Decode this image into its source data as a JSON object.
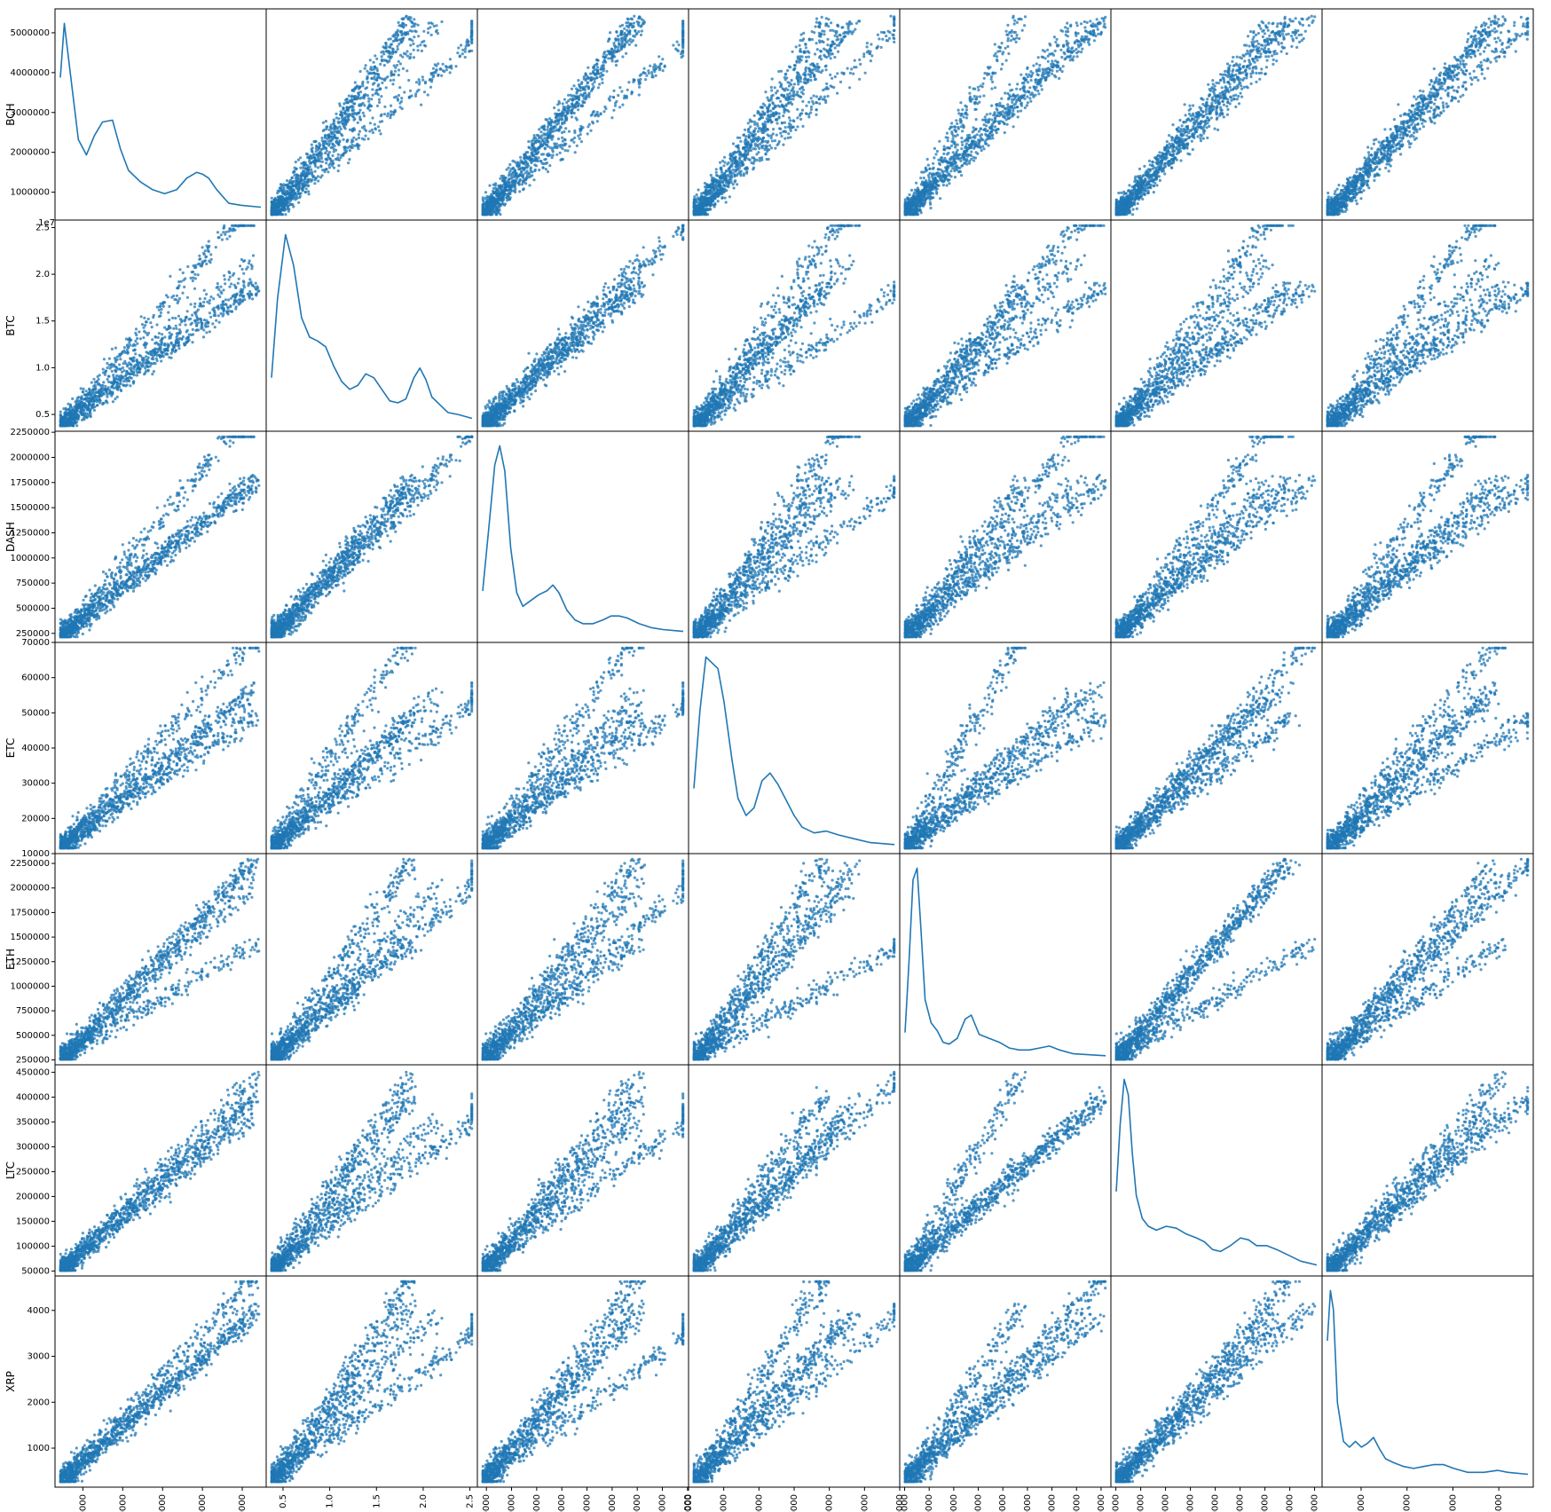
{
  "chart_data": {
    "type": "scatter",
    "subtype": "scatter-matrix",
    "diagonal": "kde",
    "point_color": "#1f77b4",
    "variables": [
      {
        "name": "BCH",
        "ticks": [
          "1000000",
          "2000000",
          "3000000",
          "4000000",
          "5000000"
        ],
        "tick_values": [
          1000000,
          2000000,
          3000000,
          4000000,
          5000000
        ],
        "lim": [
          300000,
          5600000
        ],
        "offset": ""
      },
      {
        "name": "BTC",
        "ticks": [
          "0.5",
          "1.0",
          "1.5",
          "2.0",
          "2.5"
        ],
        "tick_values": [
          0.5,
          1.0,
          1.5,
          2.0,
          2.5
        ],
        "lim": [
          0.32,
          2.58
        ],
        "offset": "1e7"
      },
      {
        "name": "DASH",
        "ticks": [
          "250000",
          "500000",
          "750000",
          "1000000",
          "1250000",
          "1500000",
          "1750000",
          "2000000",
          "2250000"
        ],
        "tick_values": [
          250000,
          500000,
          750000,
          1000000,
          1250000,
          1500000,
          1750000,
          2000000,
          2250000
        ],
        "lim": [
          160000,
          2260000
        ],
        "offset": ""
      },
      {
        "name": "ETC",
        "ticks": [
          "10000",
          "20000",
          "30000",
          "40000",
          "50000",
          "60000",
          "70000"
        ],
        "tick_values": [
          10000,
          20000,
          30000,
          40000,
          50000,
          60000,
          70000
        ],
        "lim": [
          10000,
          70000
        ],
        "offset": ""
      },
      {
        "name": "ETH",
        "ticks": [
          "250000",
          "500000",
          "750000",
          "1000000",
          "1250000",
          "1500000",
          "1750000",
          "2000000",
          "2250000"
        ],
        "tick_values": [
          250000,
          500000,
          750000,
          1000000,
          1250000,
          1500000,
          1750000,
          2000000,
          2250000
        ],
        "lim": [
          200000,
          2350000
        ],
        "offset": ""
      },
      {
        "name": "LTC",
        "ticks": [
          "50000",
          "100000",
          "150000",
          "200000",
          "250000",
          "300000",
          "350000",
          "400000",
          "450000"
        ],
        "tick_values": [
          50000,
          100000,
          150000,
          200000,
          250000,
          300000,
          350000,
          400000,
          450000
        ],
        "lim": [
          40000,
          465000
        ],
        "offset": ""
      },
      {
        "name": "XRP",
        "ticks": [
          "1000",
          "2000",
          "3000",
          "4000"
        ],
        "tick_values": [
          1000,
          2000,
          3000,
          4000
        ],
        "lim": [
          150,
          4750
        ],
        "offset": ""
      }
    ],
    "kde": {
      "BCH": [
        [
          0.0,
          0.7
        ],
        [
          0.02,
          0.98
        ],
        [
          0.05,
          0.72
        ],
        [
          0.09,
          0.38
        ],
        [
          0.13,
          0.3
        ],
        [
          0.17,
          0.4
        ],
        [
          0.21,
          0.47
        ],
        [
          0.26,
          0.48
        ],
        [
          0.3,
          0.33
        ],
        [
          0.34,
          0.22
        ],
        [
          0.4,
          0.16
        ],
        [
          0.46,
          0.12
        ],
        [
          0.52,
          0.1
        ],
        [
          0.58,
          0.12
        ],
        [
          0.63,
          0.18
        ],
        [
          0.68,
          0.21
        ],
        [
          0.71,
          0.2
        ],
        [
          0.74,
          0.18
        ],
        [
          0.78,
          0.12
        ],
        [
          0.84,
          0.05
        ],
        [
          0.9,
          0.04
        ],
        [
          1.0,
          0.03
        ]
      ],
      "BTC": [
        [
          0.0,
          0.24
        ],
        [
          0.03,
          0.65
        ],
        [
          0.07,
          0.98
        ],
        [
          0.11,
          0.82
        ],
        [
          0.15,
          0.55
        ],
        [
          0.19,
          0.45
        ],
        [
          0.23,
          0.43
        ],
        [
          0.27,
          0.4
        ],
        [
          0.31,
          0.3
        ],
        [
          0.35,
          0.22
        ],
        [
          0.39,
          0.18
        ],
        [
          0.43,
          0.2
        ],
        [
          0.47,
          0.26
        ],
        [
          0.51,
          0.24
        ],
        [
          0.55,
          0.18
        ],
        [
          0.59,
          0.12
        ],
        [
          0.63,
          0.11
        ],
        [
          0.67,
          0.13
        ],
        [
          0.71,
          0.24
        ],
        [
          0.74,
          0.29
        ],
        [
          0.77,
          0.23
        ],
        [
          0.8,
          0.14
        ],
        [
          0.84,
          0.1
        ],
        [
          0.88,
          0.06
        ],
        [
          0.93,
          0.05
        ],
        [
          1.0,
          0.03
        ]
      ],
      "DASH": [
        [
          0.0,
          0.23
        ],
        [
          0.03,
          0.55
        ],
        [
          0.06,
          0.88
        ],
        [
          0.085,
          0.98
        ],
        [
          0.11,
          0.85
        ],
        [
          0.14,
          0.45
        ],
        [
          0.17,
          0.22
        ],
        [
          0.2,
          0.15
        ],
        [
          0.24,
          0.18
        ],
        [
          0.28,
          0.21
        ],
        [
          0.32,
          0.23
        ],
        [
          0.35,
          0.26
        ],
        [
          0.38,
          0.22
        ],
        [
          0.42,
          0.13
        ],
        [
          0.46,
          0.08
        ],
        [
          0.5,
          0.06
        ],
        [
          0.55,
          0.06
        ],
        [
          0.6,
          0.08
        ],
        [
          0.64,
          0.1
        ],
        [
          0.68,
          0.1
        ],
        [
          0.72,
          0.09
        ],
        [
          0.78,
          0.06
        ],
        [
          0.84,
          0.04
        ],
        [
          0.9,
          0.03
        ],
        [
          1.0,
          0.02
        ]
      ],
      "ETC": [
        [
          0.0,
          0.3
        ],
        [
          0.03,
          0.7
        ],
        [
          0.06,
          0.98
        ],
        [
          0.09,
          0.95
        ],
        [
          0.12,
          0.92
        ],
        [
          0.15,
          0.75
        ],
        [
          0.19,
          0.45
        ],
        [
          0.22,
          0.25
        ],
        [
          0.26,
          0.16
        ],
        [
          0.3,
          0.2
        ],
        [
          0.34,
          0.34
        ],
        [
          0.38,
          0.38
        ],
        [
          0.42,
          0.32
        ],
        [
          0.46,
          0.24
        ],
        [
          0.5,
          0.16
        ],
        [
          0.54,
          0.1
        ],
        [
          0.6,
          0.07
        ],
        [
          0.66,
          0.08
        ],
        [
          0.72,
          0.06
        ],
        [
          0.8,
          0.04
        ],
        [
          0.88,
          0.02
        ],
        [
          1.0,
          0.01
        ]
      ],
      "ETH": [
        [
          0.0,
          0.13
        ],
        [
          0.02,
          0.5
        ],
        [
          0.04,
          0.92
        ],
        [
          0.06,
          0.98
        ],
        [
          0.08,
          0.65
        ],
        [
          0.1,
          0.3
        ],
        [
          0.13,
          0.18
        ],
        [
          0.16,
          0.14
        ],
        [
          0.19,
          0.08
        ],
        [
          0.22,
          0.07
        ],
        [
          0.26,
          0.1
        ],
        [
          0.3,
          0.2
        ],
        [
          0.33,
          0.22
        ],
        [
          0.37,
          0.12
        ],
        [
          0.42,
          0.1
        ],
        [
          0.47,
          0.08
        ],
        [
          0.52,
          0.05
        ],
        [
          0.57,
          0.04
        ],
        [
          0.62,
          0.04
        ],
        [
          0.67,
          0.05
        ],
        [
          0.72,
          0.06
        ],
        [
          0.77,
          0.04
        ],
        [
          0.84,
          0.02
        ],
        [
          1.0,
          0.01
        ]
      ],
      "LTC": [
        [
          0.0,
          0.4
        ],
        [
          0.02,
          0.75
        ],
        [
          0.04,
          0.98
        ],
        [
          0.06,
          0.9
        ],
        [
          0.08,
          0.6
        ],
        [
          0.1,
          0.38
        ],
        [
          0.13,
          0.26
        ],
        [
          0.16,
          0.22
        ],
        [
          0.2,
          0.2
        ],
        [
          0.25,
          0.22
        ],
        [
          0.3,
          0.21
        ],
        [
          0.35,
          0.18
        ],
        [
          0.4,
          0.16
        ],
        [
          0.44,
          0.14
        ],
        [
          0.48,
          0.1
        ],
        [
          0.52,
          0.09
        ],
        [
          0.57,
          0.12
        ],
        [
          0.62,
          0.16
        ],
        [
          0.66,
          0.15
        ],
        [
          0.7,
          0.12
        ],
        [
          0.75,
          0.12
        ],
        [
          0.8,
          0.1
        ],
        [
          0.86,
          0.07
        ],
        [
          0.92,
          0.04
        ],
        [
          1.0,
          0.02
        ]
      ],
      "XRP": [
        [
          0.0,
          0.72
        ],
        [
          0.015,
          0.98
        ],
        [
          0.03,
          0.88
        ],
        [
          0.05,
          0.4
        ],
        [
          0.08,
          0.2
        ],
        [
          0.11,
          0.17
        ],
        [
          0.14,
          0.2
        ],
        [
          0.17,
          0.17
        ],
        [
          0.2,
          0.19
        ],
        [
          0.23,
          0.22
        ],
        [
          0.26,
          0.16
        ],
        [
          0.29,
          0.11
        ],
        [
          0.33,
          0.09
        ],
        [
          0.38,
          0.07
        ],
        [
          0.43,
          0.06
        ],
        [
          0.48,
          0.07
        ],
        [
          0.53,
          0.08
        ],
        [
          0.58,
          0.08
        ],
        [
          0.63,
          0.06
        ],
        [
          0.7,
          0.04
        ],
        [
          0.78,
          0.04
        ],
        [
          0.85,
          0.05
        ],
        [
          0.9,
          0.04
        ],
        [
          1.0,
          0.03
        ]
      ]
    }
  }
}
